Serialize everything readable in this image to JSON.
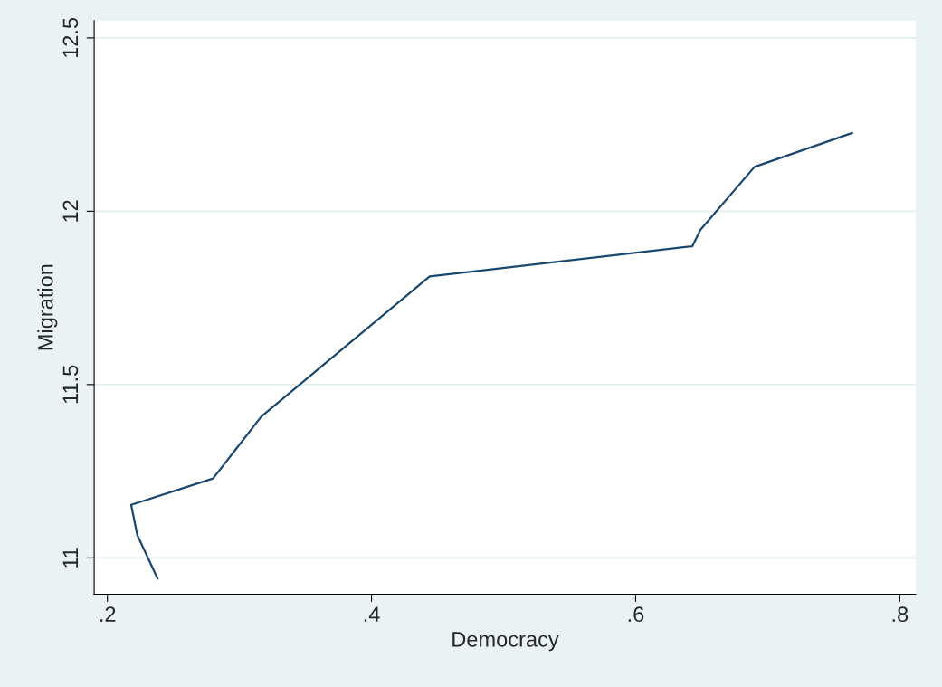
{
  "chart_data": {
    "type": "line",
    "xlabel": "Democracy",
    "ylabel": "Migration",
    "series": [
      {
        "color": "#1a476f",
        "x": [
          0.238,
          0.2226,
          0.218,
          0.28,
          0.3166,
          0.444,
          0.643,
          0.649,
          0.69,
          0.764
        ],
        "values": [
          10.94,
          11.066,
          11.153,
          11.229,
          11.408,
          11.812,
          11.899,
          11.946,
          12.128,
          12.226
        ]
      }
    ],
    "xlim": [
      0.19,
      0.812
    ],
    "ylim": [
      10.895,
      12.55
    ],
    "xticks": [
      {
        "value": 0.2,
        "label": ".2"
      },
      {
        "value": 0.4,
        "label": ".4"
      },
      {
        "value": 0.6,
        "label": ".6"
      },
      {
        "value": 0.8,
        "label": ".8"
      }
    ],
    "yticks": [
      11,
      11.5,
      12,
      12.5
    ],
    "grid": "y",
    "marker": "none",
    "line_style": "solid"
  }
}
